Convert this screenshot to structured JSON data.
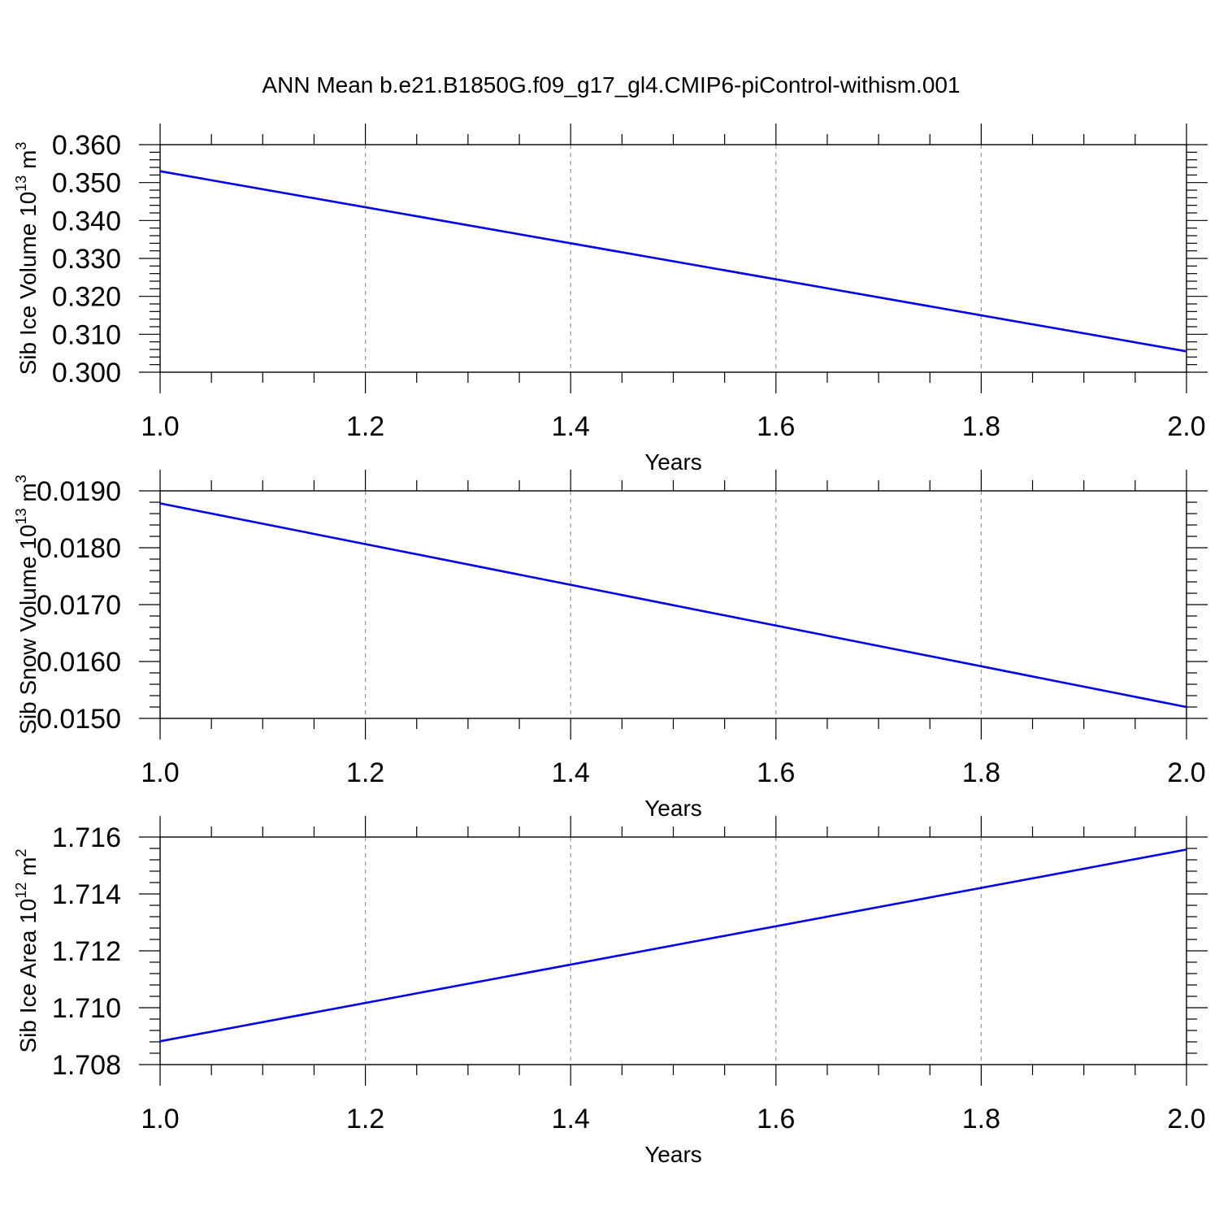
{
  "figure": {
    "title": "ANN Mean b.e21.B1850G.f09_g17_gl4.CMIP6-piControl-withism.001"
  },
  "chart_data": [
    {
      "type": "line",
      "xlabel": "Years",
      "ylabel": {
        "main": "Sib Ice Volume 10",
        "exp": "13",
        "unit": " m",
        "unit_exp": "3"
      },
      "xlim": [
        1.0,
        2.0
      ],
      "ylim": [
        0.3,
        0.36
      ],
      "xticks": [
        "1.0",
        "1.2",
        "1.4",
        "1.6",
        "1.8",
        "2.0"
      ],
      "xtick_values": [
        1.0,
        1.2,
        1.4,
        1.6,
        1.8,
        2.0
      ],
      "yticks": [
        "0.300",
        "0.310",
        "0.320",
        "0.330",
        "0.340",
        "0.350",
        "0.360"
      ],
      "ytick_values": [
        0.3,
        0.31,
        0.32,
        0.33,
        0.34,
        0.35,
        0.36
      ],
      "grid": "vertical dashed at major x ticks",
      "line_color": "#0000ee",
      "x": [
        1.0,
        2.0
      ],
      "y": [
        0.353,
        0.3055
      ]
    },
    {
      "type": "line",
      "xlabel": "Years",
      "ylabel": {
        "main": "Sib Snow Volume 10",
        "exp": "13",
        "unit": " m",
        "unit_exp": "3"
      },
      "xlim": [
        1.0,
        2.0
      ],
      "ylim": [
        0.015,
        0.019
      ],
      "xticks": [
        "1.0",
        "1.2",
        "1.4",
        "1.6",
        "1.8",
        "2.0"
      ],
      "xtick_values": [
        1.0,
        1.2,
        1.4,
        1.6,
        1.8,
        2.0
      ],
      "yticks": [
        "0.0150",
        "0.0160",
        "0.0170",
        "0.0180",
        "0.0190"
      ],
      "ytick_values": [
        0.015,
        0.016,
        0.017,
        0.018,
        0.019
      ],
      "grid": "vertical dashed at major x ticks",
      "line_color": "#0000ee",
      "x": [
        1.0,
        2.0
      ],
      "y": [
        0.01878,
        0.0152
      ]
    },
    {
      "type": "line",
      "xlabel": "Years",
      "ylabel": {
        "main": "Sib Ice Area 10",
        "exp": "12",
        "unit": " m",
        "unit_exp": "2"
      },
      "xlim": [
        1.0,
        2.0
      ],
      "ylim": [
        1.708,
        1.716
      ],
      "xticks": [
        "1.0",
        "1.2",
        "1.4",
        "1.6",
        "1.8",
        "2.0"
      ],
      "xtick_values": [
        1.0,
        1.2,
        1.4,
        1.6,
        1.8,
        2.0
      ],
      "yticks": [
        "1.708",
        "1.710",
        "1.712",
        "1.714",
        "1.716"
      ],
      "ytick_values": [
        1.708,
        1.71,
        1.712,
        1.714,
        1.716
      ],
      "grid": "vertical dashed at major x ticks",
      "line_color": "#0000ee",
      "x": [
        1.0,
        2.0
      ],
      "y": [
        1.70882,
        1.71556
      ]
    }
  ]
}
